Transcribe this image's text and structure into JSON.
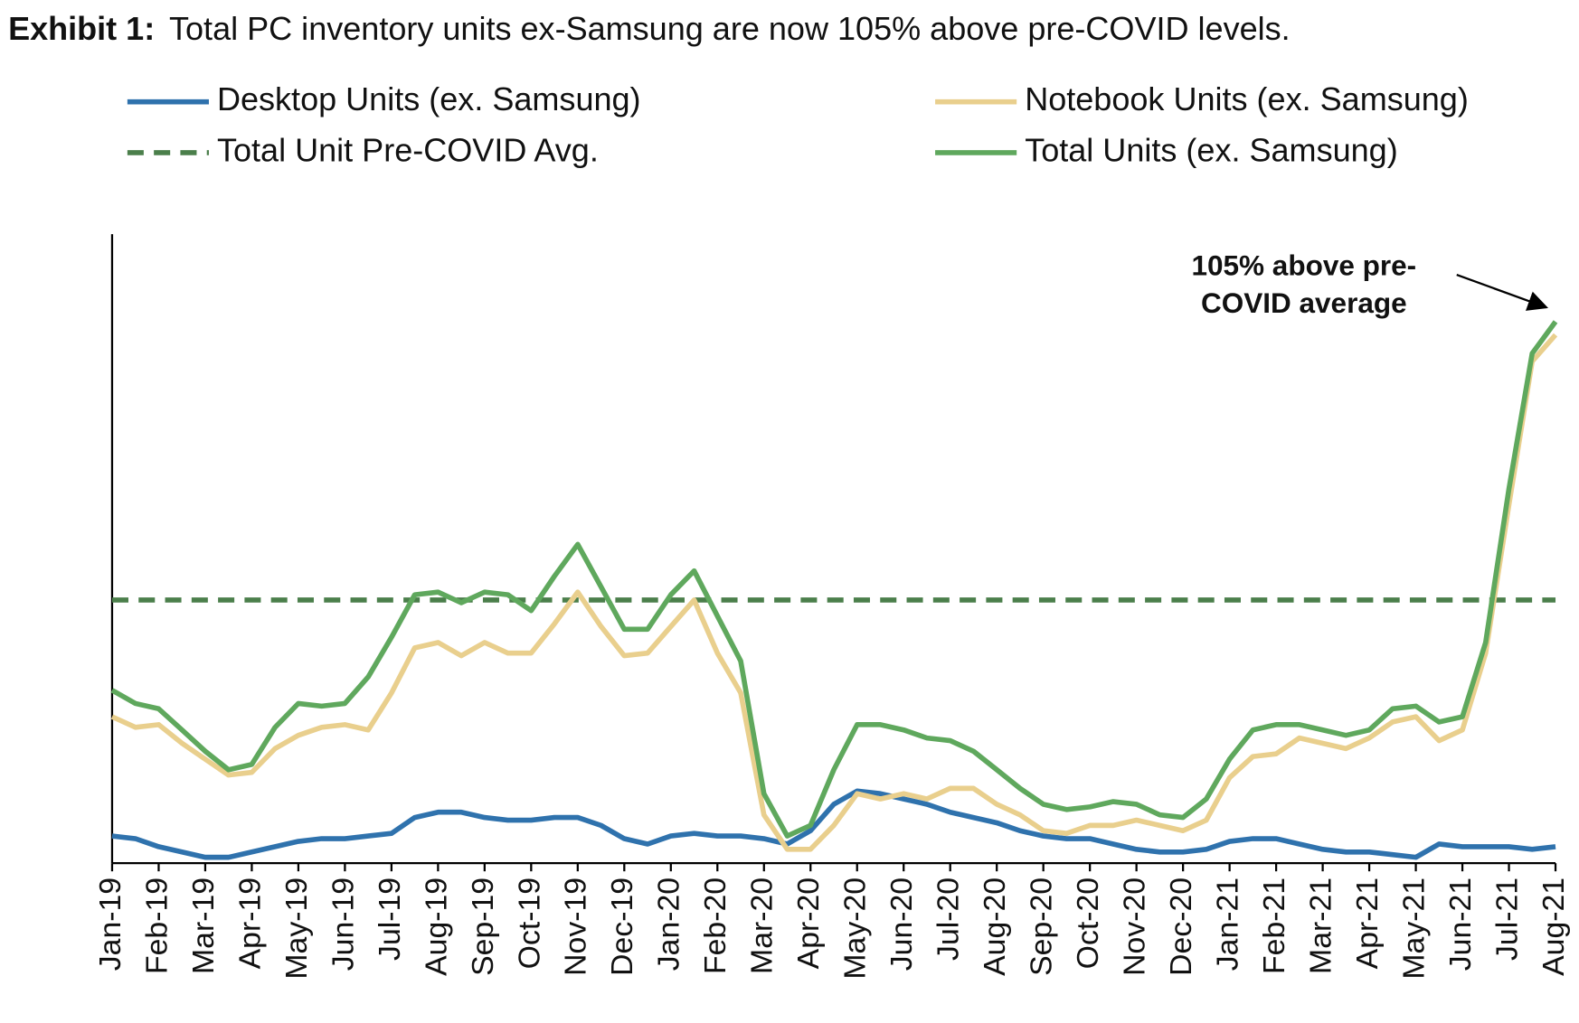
{
  "chart_data": {
    "type": "line",
    "title_label": "Exhibit 1:",
    "title": "Total PC inventory units ex-Samsung are now 105% above pre-COVID levels.",
    "annotation": [
      "105% above pre-",
      "COVID average"
    ],
    "categories": [
      "Jan-19",
      null,
      "Feb-19",
      null,
      "Mar-19",
      null,
      "Apr-19",
      null,
      "May-19",
      null,
      "Jun-19",
      null,
      "Jul-19",
      null,
      "Aug-19",
      null,
      "Sep-19",
      null,
      "Oct-19",
      null,
      "Nov-19",
      null,
      "Dec-19",
      null,
      "Jan-20",
      null,
      "Feb-20",
      null,
      "Mar-20",
      null,
      "Apr-20",
      null,
      "May-20",
      null,
      "Jun-20",
      null,
      "Jul-20",
      null,
      "Aug-20",
      null,
      "Sep-20",
      null,
      "Oct-20",
      null,
      "Nov-20",
      null,
      "Dec-20",
      null,
      "Jan-21",
      null,
      "Feb-21",
      null,
      "Mar-21",
      null,
      "Apr-21",
      null,
      "May-21",
      null,
      "Jun-21",
      null,
      "Jul-21",
      null,
      "Aug-21"
    ],
    "series": [
      {
        "name": "Desktop Units (ex. Samsung)",
        "color": "#2f72ad",
        "values": [
          11,
          10,
          7,
          5,
          3,
          3,
          5,
          7,
          9,
          10,
          10,
          11,
          12,
          18,
          20,
          20,
          18,
          17,
          17,
          18,
          18,
          15,
          10,
          8,
          11,
          12,
          11,
          11,
          10,
          8,
          13,
          23,
          28,
          27,
          25,
          23,
          20,
          18,
          16,
          13,
          11,
          10,
          10,
          8,
          6,
          5,
          5,
          6,
          9,
          10,
          10,
          8,
          6,
          5,
          5,
          4,
          3,
          8,
          7,
          7,
          7,
          6,
          7
        ]
      },
      {
        "name": "Notebook Units (ex. Samsung)",
        "color": "#e9cf8d",
        "values": [
          56,
          52,
          53,
          46,
          40,
          34,
          35,
          44,
          49,
          52,
          53,
          51,
          65,
          82,
          84,
          79,
          84,
          80,
          80,
          91,
          103,
          90,
          79,
          80,
          90,
          100,
          80,
          65,
          19,
          6,
          6,
          15,
          27,
          25,
          27,
          25,
          29,
          29,
          23,
          19,
          13,
          12,
          15,
          15,
          17,
          15,
          13,
          17,
          33,
          41,
          42,
          48,
          46,
          44,
          48,
          54,
          56,
          47,
          51,
          80,
          136,
          190,
          200
        ]
      },
      {
        "name": "Total Units (ex. Samsung)",
        "color": "#5fa85d",
        "values": [
          66,
          61,
          59,
          51,
          43,
          36,
          38,
          52,
          61,
          60,
          61,
          71,
          86,
          102,
          103,
          99,
          103,
          102,
          96,
          109,
          121,
          105,
          89,
          89,
          102,
          111,
          94,
          77,
          27,
          11,
          15,
          36,
          53,
          53,
          51,
          48,
          47,
          43,
          36,
          29,
          23,
          21,
          22,
          24,
          23,
          19,
          18,
          25,
          40,
          51,
          53,
          53,
          51,
          49,
          51,
          59,
          60,
          54,
          56,
          84,
          142,
          193,
          205
        ]
      }
    ],
    "reference_line": {
      "name": "Total Unit Pre-COVID Avg.",
      "value": 100,
      "color": "#4b7f4b",
      "dashed": true
    },
    "ylim": [
      0,
      238
    ]
  }
}
